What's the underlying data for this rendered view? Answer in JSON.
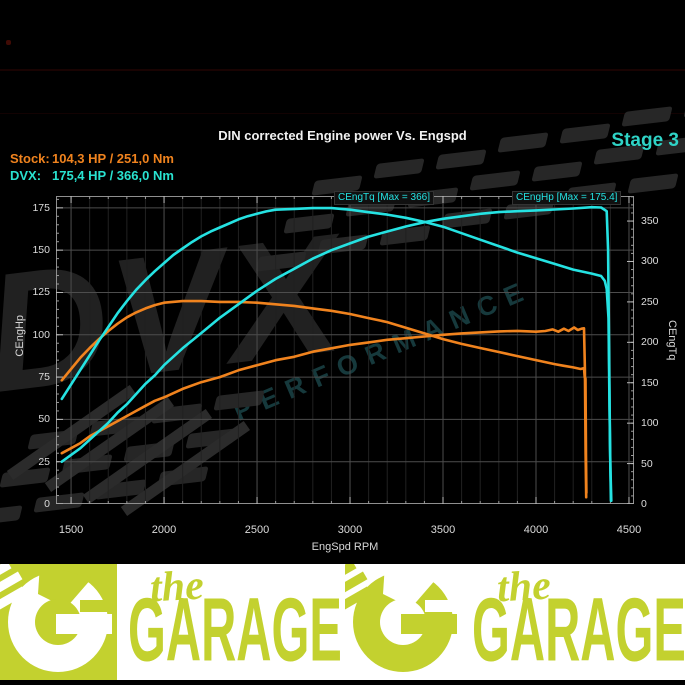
{
  "header": {
    "title": "DIN corrected Engine power Vs. Engspd",
    "stage_label": "Stage 3",
    "stock_label": "Stock:",
    "stock_value": "104,3 HP / 251,0 Nm",
    "dvx_label": "DVX:",
    "dvx_value": "175,4 HP / 366,0 Nm"
  },
  "watermark": {
    "brand": "DVX",
    "subtitle": "PERFORMANCE"
  },
  "colors": {
    "stock_orange": "#f0831e",
    "dvx_cyan": "#25e2e2",
    "stage_teal": "#2fd3c6",
    "banner_lime": "#c3d12f",
    "grid_major": "#4d4d4d",
    "grid_minor": "#212121"
  },
  "banner": {
    "word_top": "the",
    "word_main": "GARAGE"
  },
  "chart_data": {
    "type": "line",
    "title": "DIN corrected Engine power Vs. Engspd",
    "x_axis": {
      "label": "EngSpd RPM",
      "min": 1419,
      "max": 4527,
      "minor_step": 100,
      "ticks": [
        1500,
        2000,
        2500,
        3000,
        3500,
        4000,
        4500
      ]
    },
    "y_left": {
      "label": "CEngHp",
      "min": 0,
      "max": 182,
      "minor_step": 5,
      "ticks": [
        0,
        25,
        50,
        75,
        100,
        125,
        150,
        175
      ]
    },
    "y_right": {
      "label": "CEngTq",
      "min": 0,
      "max": 381,
      "minor_step": 10,
      "ticks": [
        0,
        50,
        100,
        150,
        200,
        250,
        300,
        350
      ]
    },
    "annotations": [
      {
        "text": "CEngTq [Max = 366]"
      },
      {
        "text": "CEngHp [Max = 175.4]"
      }
    ],
    "series": [
      {
        "name": "stock_torque_nm",
        "axis": "right",
        "color": "#f0831e",
        "points": [
          [
            1450,
            153
          ],
          [
            1500,
            167
          ],
          [
            1550,
            181
          ],
          [
            1600,
            193
          ],
          [
            1650,
            204
          ],
          [
            1700,
            214
          ],
          [
            1750,
            223
          ],
          [
            1800,
            231
          ],
          [
            1850,
            237
          ],
          [
            1900,
            242
          ],
          [
            1950,
            246
          ],
          [
            2000,
            249
          ],
          [
            2100,
            251
          ],
          [
            2200,
            251
          ],
          [
            2300,
            250
          ],
          [
            2400,
            250
          ],
          [
            2500,
            249
          ],
          [
            2600,
            247
          ],
          [
            2700,
            245
          ],
          [
            2800,
            242
          ],
          [
            2900,
            239
          ],
          [
            3000,
            235
          ],
          [
            3100,
            230
          ],
          [
            3200,
            225
          ],
          [
            3300,
            218
          ],
          [
            3400,
            211
          ],
          [
            3500,
            204
          ],
          [
            3600,
            198
          ],
          [
            3700,
            193
          ],
          [
            3800,
            188
          ],
          [
            3900,
            183
          ],
          [
            4000,
            178
          ],
          [
            4100,
            173
          ],
          [
            4150,
            171
          ],
          [
            4200,
            169
          ],
          [
            4240,
            167
          ],
          [
            4258,
            168
          ],
          [
            4262,
            157
          ],
          [
            4266,
            155
          ],
          [
            4269,
            60
          ],
          [
            4271,
            14
          ]
        ]
      },
      {
        "name": "stock_power_hp",
        "axis": "left",
        "color": "#f0831e",
        "points": [
          [
            1450,
            30
          ],
          [
            1500,
            33
          ],
          [
            1550,
            36
          ],
          [
            1600,
            40
          ],
          [
            1650,
            43
          ],
          [
            1700,
            46
          ],
          [
            1750,
            49
          ],
          [
            1800,
            52
          ],
          [
            1850,
            55
          ],
          [
            1900,
            58
          ],
          [
            1950,
            61
          ],
          [
            2000,
            63
          ],
          [
            2100,
            68
          ],
          [
            2200,
            72
          ],
          [
            2300,
            75
          ],
          [
            2400,
            79
          ],
          [
            2500,
            82
          ],
          [
            2600,
            85
          ],
          [
            2700,
            87
          ],
          [
            2800,
            90
          ],
          [
            2900,
            92
          ],
          [
            3000,
            94
          ],
          [
            3100,
            95.5
          ],
          [
            3200,
            97
          ],
          [
            3300,
            98
          ],
          [
            3400,
            99
          ],
          [
            3500,
            100
          ],
          [
            3600,
            100.8
          ],
          [
            3700,
            101.4
          ],
          [
            3800,
            102
          ],
          [
            3900,
            102.3
          ],
          [
            4000,
            101.8
          ],
          [
            4050,
            102.2
          ],
          [
            4090,
            103.2
          ],
          [
            4120,
            101.8
          ],
          [
            4150,
            103.6
          ],
          [
            4175,
            102.2
          ],
          [
            4205,
            104.3
          ],
          [
            4225,
            102.8
          ],
          [
            4245,
            103.6
          ],
          [
            4258,
            103.8
          ],
          [
            4263,
            80
          ],
          [
            4267,
            30
          ],
          [
            4270,
            4
          ]
        ]
      },
      {
        "name": "dvx_torque_nm",
        "axis": "right",
        "color": "#25e2e2",
        "points": [
          [
            1450,
            130
          ],
          [
            1500,
            148
          ],
          [
            1550,
            166
          ],
          [
            1600,
            184
          ],
          [
            1650,
            202
          ],
          [
            1700,
            219
          ],
          [
            1750,
            236
          ],
          [
            1800,
            251
          ],
          [
            1850,
            265
          ],
          [
            1900,
            277
          ],
          [
            1950,
            288
          ],
          [
            2000,
            298
          ],
          [
            2050,
            308
          ],
          [
            2100,
            316
          ],
          [
            2150,
            324
          ],
          [
            2200,
            331
          ],
          [
            2250,
            337
          ],
          [
            2300,
            342
          ],
          [
            2350,
            347
          ],
          [
            2400,
            352
          ],
          [
            2450,
            356
          ],
          [
            2500,
            359
          ],
          [
            2550,
            362
          ],
          [
            2600,
            364
          ],
          [
            2700,
            365
          ],
          [
            2800,
            366
          ],
          [
            2900,
            366
          ],
          [
            3000,
            364
          ],
          [
            3100,
            361
          ],
          [
            3200,
            358
          ],
          [
            3300,
            354
          ],
          [
            3400,
            349
          ],
          [
            3500,
            343
          ],
          [
            3600,
            335
          ],
          [
            3700,
            327
          ],
          [
            3800,
            319
          ],
          [
            3900,
            311
          ],
          [
            4000,
            304
          ],
          [
            4100,
            297
          ],
          [
            4200,
            290
          ],
          [
            4300,
            285
          ],
          [
            4350,
            282
          ],
          [
            4370,
            276
          ],
          [
            4380,
            266
          ],
          [
            4390,
            230
          ],
          [
            4395,
            120
          ],
          [
            4400,
            45
          ],
          [
            4405,
            4
          ]
        ]
      },
      {
        "name": "dvx_power_hp",
        "axis": "left",
        "color": "#25e2e2",
        "points": [
          [
            1450,
            25
          ],
          [
            1500,
            29
          ],
          [
            1550,
            33
          ],
          [
            1600,
            38
          ],
          [
            1650,
            43
          ],
          [
            1700,
            48
          ],
          [
            1750,
            54
          ],
          [
            1800,
            59
          ],
          [
            1850,
            65
          ],
          [
            1900,
            71
          ],
          [
            1950,
            76
          ],
          [
            2000,
            82
          ],
          [
            2100,
            92
          ],
          [
            2200,
            101
          ],
          [
            2300,
            110
          ],
          [
            2400,
            118
          ],
          [
            2500,
            126
          ],
          [
            2600,
            133
          ],
          [
            2700,
            139
          ],
          [
            2800,
            145
          ],
          [
            2900,
            150
          ],
          [
            3000,
            154
          ],
          [
            3100,
            158
          ],
          [
            3200,
            161
          ],
          [
            3300,
            164
          ],
          [
            3400,
            166.5
          ],
          [
            3500,
            168.5
          ],
          [
            3600,
            170
          ],
          [
            3700,
            171.5
          ],
          [
            3800,
            172.5
          ],
          [
            3900,
            173
          ],
          [
            4000,
            173.5
          ],
          [
            4100,
            174
          ],
          [
            4200,
            174.6
          ],
          [
            4300,
            175.4
          ],
          [
            4350,
            175.2
          ],
          [
            4380,
            173
          ],
          [
            4388,
            150
          ],
          [
            4393,
            90
          ],
          [
            4398,
            35
          ],
          [
            4403,
            2
          ]
        ]
      }
    ]
  }
}
